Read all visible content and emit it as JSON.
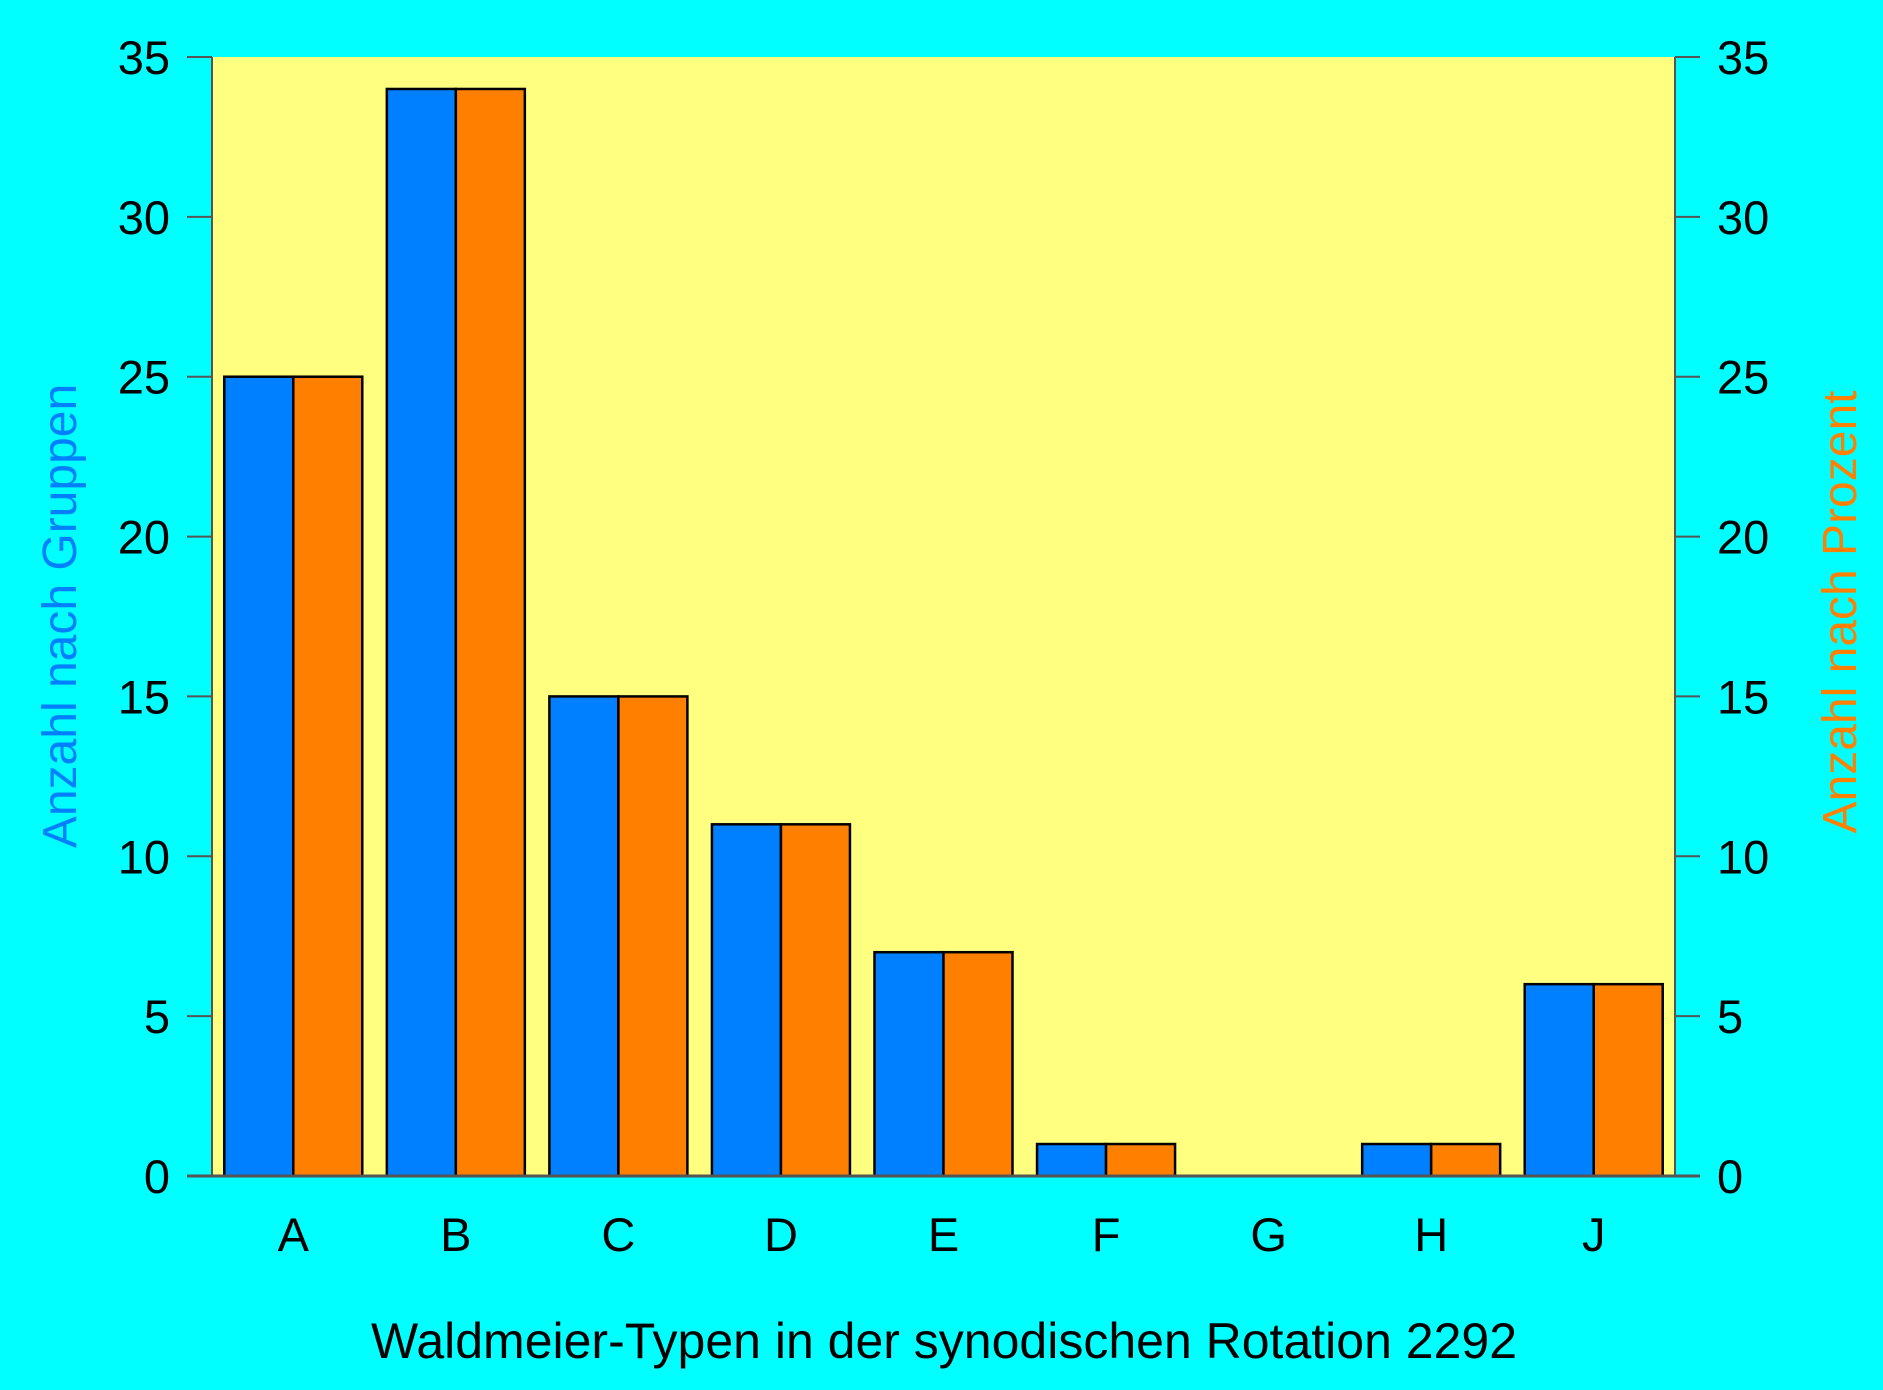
{
  "chart_data": {
    "type": "bar",
    "title": "",
    "xlabel": "Waldmeier-Typen in der synodischen Rotation 2292",
    "ylabel": "Anzahl nach Gruppen",
    "ylabel_right": "Anzahl nach Prozent",
    "categories": [
      "A",
      "B",
      "C",
      "D",
      "E",
      "F",
      "G",
      "H",
      "J"
    ],
    "series": [
      {
        "name": "Anzahl nach Gruppen",
        "axis": "left",
        "color": "#0080ff",
        "values": [
          25,
          34,
          15,
          11,
          7,
          1,
          0,
          1,
          6
        ]
      },
      {
        "name": "Anzahl nach Prozent",
        "axis": "right",
        "color": "#ff8000",
        "values": [
          25,
          34,
          15,
          11,
          7,
          1,
          0,
          1,
          6
        ]
      }
    ],
    "ylim": [
      0,
      35
    ],
    "ylim_right": [
      0,
      35
    ],
    "yticks": [
      0,
      5,
      10,
      15,
      20,
      25,
      30,
      35
    ],
    "yticks_right": [
      0,
      5,
      10,
      15,
      20,
      25,
      30,
      35
    ],
    "grid": false,
    "legend": "none",
    "colors": {
      "background": "#00ffff",
      "plot_background": "#ffff80",
      "left_axis_label": "#0080ff",
      "right_axis_label": "#ff8000"
    }
  }
}
